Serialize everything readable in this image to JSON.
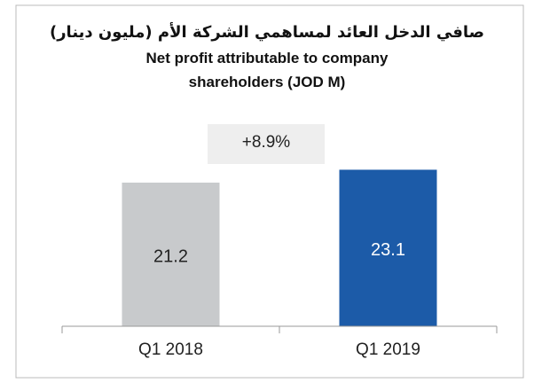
{
  "chart_data": {
    "type": "bar",
    "title": "صافي الدخل العائد لمساهمي الشركة الأم (مليون دينار)",
    "subtitle": "Net profit attributable to company shareholders (JOD M)",
    "annotation": "+8.9%",
    "categories": [
      "Q1 2018",
      "Q1 2019"
    ],
    "values": [
      21.2,
      23.1
    ],
    "colors": [
      "#c8cacc",
      "#1c5ba8"
    ],
    "label_colors": [
      "#222222",
      "#ffffff"
    ],
    "ylim": [
      0,
      28
    ]
  }
}
